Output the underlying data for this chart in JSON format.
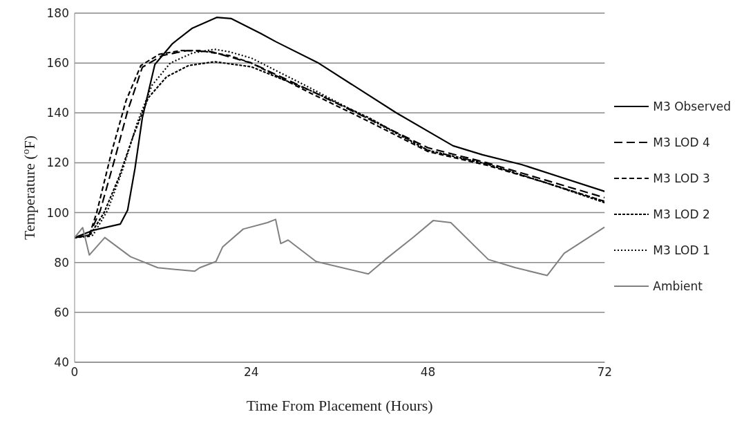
{
  "chart_data": {
    "type": "line",
    "xlabel": "Time From Placement (Hours)",
    "ylabel": "Temperature ($^{o}$F)",
    "xlim": [
      0,
      72
    ],
    "xticks": [
      0,
      24,
      48,
      72
    ],
    "ylim": [
      40,
      180
    ],
    "yticks": [
      40,
      60,
      80,
      100,
      120,
      140,
      160,
      180
    ],
    "grid": "y",
    "legend": "right",
    "marker": "none",
    "series": [
      {
        "name": "M3 Observed",
        "color": "#000000",
        "line_style": "solid",
        "x": [
          0,
          2.5,
          6.2,
          7.2,
          8.2,
          9.2,
          10.9,
          13.3,
          16,
          19.3,
          21.3,
          25.3,
          27.3,
          33,
          43.7,
          51.4,
          55.4,
          60.7,
          72
        ],
        "values": [
          90,
          92.9,
          95.4,
          101,
          117.7,
          138,
          159.4,
          167.8,
          174,
          178.3,
          177.8,
          171.8,
          168.6,
          160.2,
          140,
          126.8,
          123.2,
          119.3,
          108.5
        ]
      },
      {
        "name": "M3 LOD 4",
        "color": "#000000",
        "line_style": "dashed",
        "x": [
          0,
          2,
          3.5,
          5.5,
          7.2,
          9.2,
          11.9,
          15.3,
          18.6,
          24,
          32,
          40,
          48,
          56,
          64,
          72
        ],
        "values": [
          90,
          91,
          101,
          122,
          140.8,
          158.3,
          163,
          165,
          164.5,
          160,
          149,
          137.5,
          126,
          120,
          113,
          106
        ]
      },
      {
        "name": "M3 LOD 3",
        "color": "#000000",
        "line_style": "dashed",
        "x": [
          0,
          2,
          3,
          5,
          7,
          9,
          11.5,
          14.5,
          17,
          21,
          24,
          32,
          40,
          48,
          56,
          64,
          72
        ],
        "values": [
          90,
          91,
          100,
          124,
          145,
          159,
          163.5,
          165,
          165,
          163,
          160,
          148,
          136.5,
          124.5,
          119,
          112,
          104.5
        ]
      },
      {
        "name": "M3 LOD 2",
        "color": "#000000",
        "line_style": "dashed",
        "x": [
          0,
          2,
          4,
          6,
          8,
          10,
          12.5,
          15.5,
          19,
          24,
          32,
          40,
          48,
          56,
          64,
          72
        ],
        "values": [
          90,
          90.5,
          100,
          114,
          131,
          146,
          154.5,
          159,
          160.5,
          158.5,
          149,
          138,
          125,
          119.5,
          112,
          104
        ]
      },
      {
        "name": "M3 LOD 1",
        "color": "#000000",
        "line_style": "dotted",
        "x": [
          0,
          2.5,
          4.5,
          6.5,
          8.5,
          10.5,
          13,
          16,
          19,
          21,
          24,
          32,
          40,
          48,
          56,
          64,
          72
        ],
        "values": [
          90,
          91,
          101,
          117,
          136,
          151,
          160,
          164,
          165.5,
          164.5,
          162,
          150,
          137.5,
          125,
          119.5,
          112,
          104.5
        ]
      },
      {
        "name": "Ambient",
        "color": "#808080",
        "line_style": "solid",
        "x": [
          0,
          1.1,
          2,
          4.1,
          7.6,
          11.3,
          16.3,
          17,
          19.2,
          20.1,
          22.9,
          26.2,
          27.3,
          28,
          29,
          32.8,
          39.9,
          42.2,
          46,
          48.7,
          51.1,
          56.2,
          59.9,
          64.2,
          66.5,
          71.9,
          72
        ],
        "values": [
          90,
          94,
          83,
          90,
          82.3,
          77.9,
          76.5,
          77.9,
          80.4,
          86.2,
          93.4,
          96,
          97.3,
          87.6,
          89,
          80.4,
          75.4,
          81.2,
          90.1,
          96.8,
          96,
          81.2,
          77.9,
          74.8,
          83.7,
          94,
          94.2
        ]
      }
    ]
  }
}
